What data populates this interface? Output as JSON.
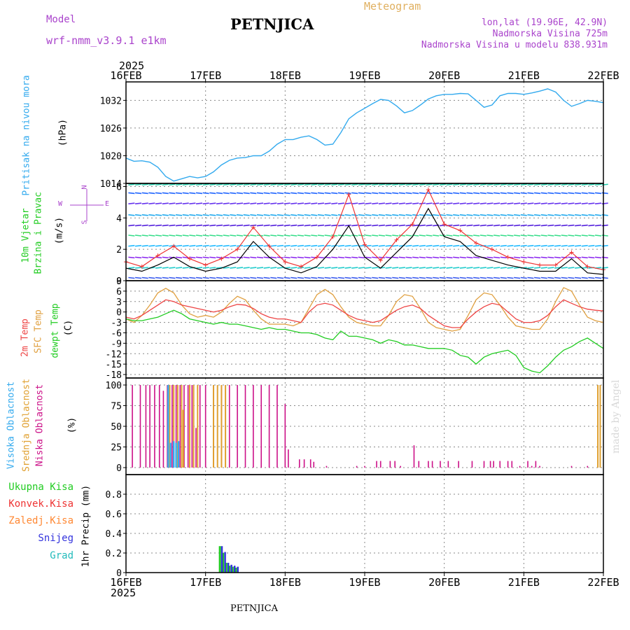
{
  "header": {
    "model_label": "Model",
    "model_name": "wrf-nmm_v3.9.1 e1km",
    "station": "PETNJICA",
    "product": "Meteogram",
    "location": "lon,lat (19.96E, 42.9N)",
    "elevation": "Nadmorska Visina 725m",
    "model_elevation": "Nadmorska Visina u modelu 838.931m",
    "footer_station": "PETNJICA",
    "watermark": "made by Angel"
  },
  "time_axis": {
    "year": "2025",
    "ticks": [
      "16FEB",
      "17FEB",
      "18FEB",
      "19FEB",
      "20FEB",
      "21FEB",
      "22FEB"
    ],
    "start_day": 16,
    "end_day": 22
  },
  "colors": {
    "pressure": "#33aaee",
    "wind_black": "#000000",
    "wind_gust": "#ee3333",
    "temp_2m": "#ee4444",
    "temp_sfc": "#e0a040",
    "dewpoint": "#22cc22",
    "cloud_high": "#33aaee",
    "cloud_mid": "#e0a030",
    "cloud_low": "#cc1188",
    "precip_total": "#22cc22",
    "precip_conv": "#ee3333",
    "precip_frz": "#ff8833",
    "snow": "#3333dd",
    "graupel": "#22bbbb",
    "purple_text": "#aa44cc",
    "gold_text": "#e0b060"
  },
  "chart_data": [
    {
      "type": "line",
      "name": "pressure",
      "ylabel_1": "Pritisak na nivou mora",
      "ylabel_2": "(hPa)",
      "ylim": [
        1014,
        1036
      ],
      "yticks": [
        1014,
        1020,
        1026,
        1032
      ],
      "x": [
        16.0,
        16.1,
        16.2,
        16.3,
        16.4,
        16.5,
        16.6,
        16.7,
        16.8,
        16.9,
        17.0,
        17.1,
        17.2,
        17.3,
        17.4,
        17.5,
        17.6,
        17.7,
        17.8,
        17.9,
        18.0,
        18.1,
        18.2,
        18.3,
        18.4,
        18.5,
        18.6,
        18.7,
        18.8,
        18.9,
        19.0,
        19.1,
        19.2,
        19.3,
        19.4,
        19.5,
        19.6,
        19.7,
        19.8,
        19.9,
        20.0,
        20.1,
        20.2,
        20.3,
        20.4,
        20.5,
        20.6,
        20.7,
        20.8,
        20.9,
        21.0,
        21.1,
        21.2,
        21.3,
        21.4,
        21.5,
        21.6,
        21.7,
        21.8,
        21.9,
        22.0
      ],
      "values": [
        1019.5,
        1018.8,
        1018.9,
        1018.6,
        1017.5,
        1015.5,
        1014.5,
        1015.0,
        1015.5,
        1015.2,
        1015.5,
        1016.5,
        1018.0,
        1019.0,
        1019.5,
        1019.6,
        1020.0,
        1020.0,
        1021.0,
        1022.5,
        1023.5,
        1023.5,
        1024.0,
        1024.3,
        1023.5,
        1022.3,
        1022.5,
        1025.0,
        1028.0,
        1029.3,
        1030.3,
        1031.3,
        1032.2,
        1032.0,
        1030.8,
        1029.3,
        1029.8,
        1031.0,
        1032.3,
        1033.0,
        1033.3,
        1033.3,
        1033.5,
        1033.4,
        1032.0,
        1030.5,
        1031.0,
        1033.0,
        1033.5,
        1033.5,
        1033.3,
        1033.6,
        1034.0,
        1034.5,
        1033.8,
        1032.0,
        1030.7,
        1031.3,
        1032.0,
        1031.8,
        1031.5
      ]
    },
    {
      "type": "line",
      "name": "wind",
      "ylabel_1": "10m Vjetar",
      "ylabel_2": "Brzina i Pravac",
      "ylabel_3": "(m/s)",
      "compass_n": "N",
      "compass_w": "W",
      "compass_e": "E",
      "compass_s": "S",
      "ylim": [
        0,
        6.2
      ],
      "yticks": [
        0,
        2,
        4,
        6
      ],
      "x": [
        16.0,
        16.2,
        16.4,
        16.6,
        16.8,
        17.0,
        17.2,
        17.4,
        17.6,
        17.8,
        18.0,
        18.2,
        18.4,
        18.6,
        18.8,
        19.0,
        19.2,
        19.4,
        19.6,
        19.8,
        20.0,
        20.2,
        20.4,
        20.6,
        20.8,
        21.0,
        21.2,
        21.4,
        21.6,
        21.8,
        22.0
      ],
      "speed": [
        0.8,
        0.6,
        1.0,
        1.5,
        0.9,
        0.6,
        0.8,
        1.2,
        2.5,
        1.5,
        0.8,
        0.5,
        0.9,
        2.0,
        3.5,
        1.5,
        0.8,
        1.8,
        2.8,
        4.6,
        2.8,
        2.5,
        1.6,
        1.3,
        1.0,
        0.8,
        0.6,
        0.6,
        1.4,
        0.5,
        0.4
      ],
      "gust": [
        1.2,
        0.9,
        1.6,
        2.2,
        1.4,
        1.0,
        1.4,
        2.0,
        3.4,
        2.2,
        1.2,
        0.9,
        1.5,
        2.8,
        5.5,
        2.3,
        1.3,
        2.6,
        3.6,
        5.8,
        3.6,
        3.2,
        2.4,
        2.0,
        1.5,
        1.2,
        1.0,
        1.0,
        1.8,
        0.9,
        0.7
      ]
    },
    {
      "type": "line",
      "name": "temperature",
      "ylabel_1": "2m Temp",
      "ylabel_2": "SFC Temp",
      "ylabel_3": "dewpt Temp",
      "ylabel_4": "(C)",
      "ylim": [
        -19,
        9
      ],
      "yticks": [
        9,
        6,
        3,
        0,
        -3,
        -6,
        -9,
        -12,
        -15,
        -18
      ],
      "x": [
        16.0,
        16.1,
        16.2,
        16.3,
        16.4,
        16.5,
        16.6,
        16.7,
        16.8,
        16.9,
        17.0,
        17.1,
        17.2,
        17.3,
        17.4,
        17.5,
        17.6,
        17.7,
        17.8,
        17.9,
        18.0,
        18.1,
        18.2,
        18.3,
        18.4,
        18.5,
        18.6,
        18.7,
        18.8,
        18.9,
        19.0,
        19.1,
        19.2,
        19.3,
        19.4,
        19.5,
        19.6,
        19.7,
        19.8,
        19.9,
        20.0,
        20.1,
        20.2,
        20.3,
        20.4,
        20.5,
        20.6,
        20.7,
        20.8,
        20.9,
        21.0,
        21.1,
        21.2,
        21.3,
        21.4,
        21.5,
        21.6,
        21.7,
        21.8,
        21.9,
        22.0
      ],
      "t2m": [
        -1.5,
        -2.0,
        -1.0,
        0.5,
        2.0,
        3.5,
        3.0,
        2.0,
        1.5,
        1.0,
        0.5,
        0.0,
        0.5,
        1.5,
        2.2,
        2.0,
        1.0,
        -0.5,
        -1.5,
        -2.0,
        -2.0,
        -2.5,
        -3.0,
        0.0,
        2.0,
        2.5,
        2.0,
        0.5,
        -1.0,
        -2.0,
        -2.5,
        -3.0,
        -2.5,
        -1.0,
        0.5,
        1.5,
        2.0,
        1.0,
        -1.0,
        -2.5,
        -4.0,
        -4.5,
        -4.5,
        -2.0,
        0.0,
        1.5,
        2.5,
        2.0,
        0.0,
        -2.0,
        -3.0,
        -3.0,
        -2.5,
        -1.0,
        1.5,
        3.5,
        2.5,
        1.5,
        0.8,
        0.5,
        0.3
      ],
      "sfc": [
        -2.0,
        -3.0,
        -1.0,
        2.0,
        5.5,
        6.8,
        5.5,
        2.0,
        -0.5,
        -1.5,
        -1.0,
        -1.5,
        0.0,
        2.5,
        4.5,
        3.5,
        0.5,
        -2.0,
        -3.5,
        -3.5,
        -3.5,
        -4.0,
        -3.0,
        1.0,
        5.0,
        6.5,
        5.0,
        1.5,
        -1.5,
        -3.0,
        -3.5,
        -4.0,
        -4.0,
        -1.0,
        3.0,
        5.0,
        4.5,
        1.0,
        -3.0,
        -4.5,
        -5.0,
        -5.5,
        -5.0,
        -1.0,
        3.5,
        5.5,
        5.0,
        2.0,
        -1.5,
        -4.0,
        -4.5,
        -5.0,
        -5.0,
        -2.0,
        3.0,
        7.0,
        6.0,
        2.0,
        -1.5,
        -2.5,
        -3.0
      ],
      "dewpt": [
        -2.0,
        -2.5,
        -2.5,
        -2.0,
        -1.5,
        -0.5,
        0.5,
        -0.5,
        -2.0,
        -2.5,
        -3.0,
        -3.5,
        -3.0,
        -3.5,
        -3.5,
        -4.0,
        -4.5,
        -5.0,
        -4.5,
        -5.0,
        -5.0,
        -5.5,
        -6.0,
        -6.0,
        -6.5,
        -7.5,
        -8.0,
        -5.5,
        -7.0,
        -7.0,
        -7.5,
        -8.0,
        -9.0,
        -8.0,
        -8.5,
        -9.5,
        -9.5,
        -10.0,
        -10.5,
        -10.5,
        -10.5,
        -11.0,
        -12.5,
        -13.0,
        -15.0,
        -13.0,
        -12.0,
        -11.5,
        -11.0,
        -12.5,
        -16.0,
        -17.0,
        -17.5,
        -15.5,
        -13.0,
        -11.0,
        -10.0,
        -8.5,
        -7.5,
        -9.0,
        -10.5
      ]
    },
    {
      "type": "bar",
      "name": "clouds",
      "ylabel_1": "Visoka Oblacnost",
      "ylabel_2": "Srednja Oblacnost",
      "ylabel_3": "Niska Oblacnost",
      "ylabel_4": "(%)",
      "ylim": [
        0,
        100
      ],
      "yticks": [
        0,
        25,
        50,
        75,
        100
      ],
      "low": [
        [
          16.08,
          100
        ],
        [
          16.18,
          100
        ],
        [
          16.25,
          100
        ],
        [
          16.3,
          100
        ],
        [
          16.36,
          100
        ],
        [
          16.42,
          100
        ],
        [
          16.47,
          93
        ],
        [
          16.52,
          100
        ],
        [
          16.58,
          100
        ],
        [
          16.63,
          100
        ],
        [
          16.68,
          100
        ],
        [
          16.73,
          100
        ],
        [
          16.78,
          100
        ],
        [
          16.83,
          100
        ],
        [
          16.88,
          48
        ],
        [
          16.93,
          100
        ],
        [
          17.0,
          100
        ],
        [
          17.1,
          100
        ],
        [
          17.2,
          100
        ],
        [
          17.3,
          100
        ],
        [
          17.4,
          100
        ],
        [
          17.5,
          100
        ],
        [
          17.6,
          100
        ],
        [
          17.7,
          100
        ],
        [
          17.8,
          100
        ],
        [
          17.9,
          100
        ],
        [
          18.0,
          77
        ],
        [
          18.04,
          22
        ],
        [
          18.18,
          10
        ],
        [
          18.24,
          10
        ],
        [
          18.32,
          10
        ],
        [
          18.36,
          7
        ],
        [
          18.52,
          2
        ],
        [
          18.9,
          2
        ],
        [
          19.0,
          2
        ],
        [
          19.15,
          8
        ],
        [
          19.2,
          8
        ],
        [
          19.32,
          8
        ],
        [
          19.38,
          8
        ],
        [
          19.45,
          2
        ],
        [
          19.62,
          27
        ],
        [
          19.68,
          8
        ],
        [
          19.8,
          8
        ],
        [
          19.85,
          8
        ],
        [
          19.95,
          8
        ],
        [
          20.05,
          8
        ],
        [
          20.18,
          8
        ],
        [
          20.35,
          8
        ],
        [
          20.5,
          8
        ],
        [
          20.58,
          8
        ],
        [
          20.62,
          8
        ],
        [
          20.7,
          8
        ],
        [
          20.8,
          8
        ],
        [
          20.85,
          8
        ],
        [
          20.95,
          2
        ],
        [
          21.05,
          8
        ],
        [
          21.1,
          2
        ],
        [
          21.15,
          8
        ],
        [
          21.2,
          2
        ],
        [
          21.6,
          2
        ],
        [
          21.8,
          2
        ]
      ],
      "mid": [
        [
          16.55,
          100
        ],
        [
          16.6,
          100
        ],
        [
          16.65,
          100
        ],
        [
          16.7,
          100
        ],
        [
          16.72,
          70
        ],
        [
          16.8,
          100
        ],
        [
          16.85,
          100
        ],
        [
          16.9,
          100
        ],
        [
          17.1,
          100
        ],
        [
          17.15,
          100
        ],
        [
          17.2,
          100
        ],
        [
          17.25,
          100
        ],
        [
          21.93,
          100
        ],
        [
          21.96,
          100
        ]
      ],
      "high": [
        [
          16.53,
          100
        ],
        [
          16.56,
          30
        ],
        [
          16.6,
          32
        ],
        [
          16.63,
          30
        ],
        [
          16.66,
          32
        ]
      ]
    },
    {
      "type": "bar",
      "name": "precip",
      "ylabel_1": "1hr Precip (mm)",
      "ylim": [
        0,
        1.0
      ],
      "yticks": [
        0,
        0.2,
        0.4,
        0.6,
        0.8
      ],
      "legend": [
        "Ukupna Kisa",
        "Konvek.Kisa",
        "Zaledj.Kisa",
        "Snijeg",
        "Grad"
      ],
      "total": [
        [
          17.18,
          0.27
        ],
        [
          17.22,
          0.2
        ],
        [
          17.26,
          0.1
        ],
        [
          17.3,
          0.07
        ],
        [
          17.34,
          0.06
        ],
        [
          17.38,
          0.05
        ]
      ],
      "snow": [
        [
          17.19,
          0.27
        ],
        [
          17.23,
          0.21
        ],
        [
          17.27,
          0.1
        ],
        [
          17.31,
          0.08
        ],
        [
          17.35,
          0.07
        ],
        [
          17.39,
          0.06
        ]
      ]
    }
  ]
}
